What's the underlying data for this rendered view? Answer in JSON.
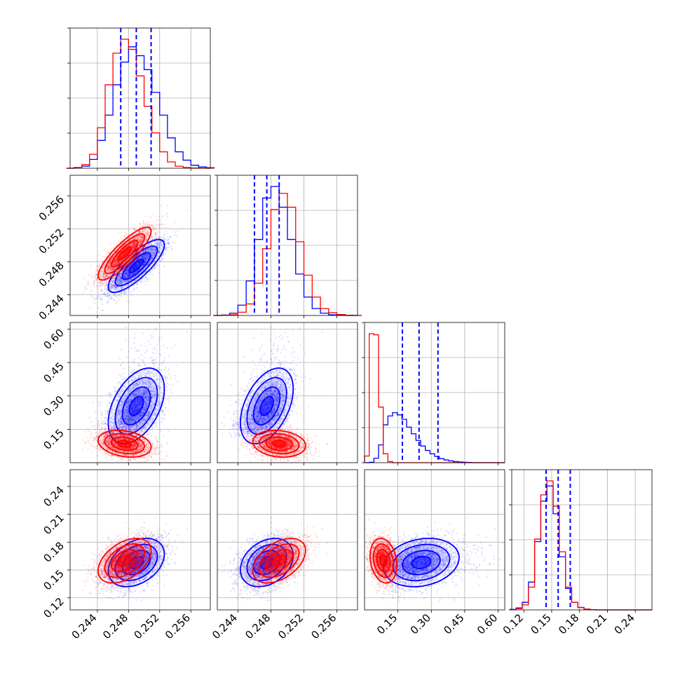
{
  "chart_data": {
    "type": "corner",
    "colors": {
      "blue": "#0000ff",
      "red": "#ff0000",
      "grid": "#b0b0b0"
    },
    "parameters": [
      {
        "range": [
          0.2405,
          0.2585
        ],
        "ticks": [
          0.244,
          0.248,
          0.252,
          0.256
        ],
        "tick_labels": [
          "0.244",
          "0.248",
          "0.252",
          "0.256"
        ]
      },
      {
        "range": [
          0.2415,
          0.2585
        ],
        "ticks": [
          0.244,
          0.248,
          0.252,
          0.256
        ],
        "tick_labels": [
          "0.244",
          "0.248",
          "0.252",
          "0.256"
        ]
      },
      {
        "range": [
          0.0,
          0.63
        ],
        "ticks": [
          0.15,
          0.3,
          0.45,
          0.6
        ],
        "tick_labels": [
          "0.15",
          "0.30",
          "0.45",
          "0.60"
        ]
      },
      {
        "range": [
          0.107,
          0.258
        ],
        "ticks": [
          0.12,
          0.15,
          0.18,
          0.21,
          0.24
        ],
        "tick_labels": [
          "0.12",
          "0.15",
          "0.18",
          "0.21",
          "0.24"
        ]
      }
    ],
    "series": [
      {
        "color": "blue",
        "means": [
          0.249,
          0.2475,
          0.255,
          0.158
        ],
        "sds": [
          0.0018,
          0.0016,
          0.085,
          0.013
        ],
        "corr": [
          [
            1,
            0.8,
            0.45,
            0.35
          ],
          [
            0.8,
            1,
            0.45,
            0.3
          ],
          [
            0.45,
            0.45,
            1,
            0.2
          ],
          [
            0.35,
            0.3,
            0.2,
            1
          ]
        ],
        "skew_param": 2
      },
      {
        "color": "red",
        "means": [
          0.2475,
          0.249,
          0.085,
          0.16
        ],
        "sds": [
          0.0017,
          0.0016,
          0.03,
          0.012
        ],
        "corr": [
          [
            1,
            0.85,
            -0.25,
            0.45
          ],
          [
            0.85,
            1,
            -0.15,
            0.45
          ],
          [
            -0.25,
            -0.15,
            1,
            -0.2
          ],
          [
            0.45,
            0.45,
            -0.2,
            1
          ]
        ],
        "skew_param": null
      }
    ],
    "histograms": [
      {
        "bins": [
          0.24,
          0.259
        ],
        "blue": [
          0,
          2,
          8,
          35,
          110,
          210,
          330,
          420,
          480,
          445,
          390,
          300,
          210,
          120,
          65,
          32,
          12,
          5,
          2
        ],
        "red": [
          0,
          3,
          14,
          55,
          160,
          330,
          455,
          510,
          470,
          365,
          245,
          140,
          65,
          25,
          8,
          3,
          1,
          0,
          0
        ]
      },
      {
        "bins": [
          0.241,
          0.259
        ],
        "blue": [
          0,
          2,
          10,
          45,
          150,
          330,
          510,
          560,
          470,
          330,
          180,
          80,
          30,
          10,
          3,
          1,
          0,
          0
        ],
        "red": [
          0,
          1,
          3,
          14,
          50,
          140,
          290,
          460,
          530,
          470,
          320,
          175,
          80,
          30,
          12,
          4,
          1,
          0
        ]
      },
      {
        "bins": [
          0.0,
          0.63
        ],
        "blue": [
          0,
          2,
          20,
          80,
          170,
          210,
          225,
          215,
          195,
          160,
          130,
          100,
          75,
          55,
          40,
          28,
          18,
          12,
          8,
          5,
          3,
          2,
          1,
          0,
          0,
          0,
          0,
          0,
          0,
          0
        ],
        "red": [
          30,
          580,
          575,
          250,
          40,
          5,
          0,
          0,
          0,
          0,
          0,
          0,
          0,
          0,
          0,
          0,
          0,
          0,
          0,
          0,
          0,
          0,
          0,
          0,
          0,
          0,
          0,
          0,
          0,
          0
        ]
      },
      {
        "bins": [
          0.105,
          0.258
        ],
        "blue": [
          2,
          8,
          30,
          110,
          270,
          430,
          490,
          380,
          210,
          85,
          30,
          10,
          3,
          1,
          0,
          0,
          0,
          0,
          0,
          0,
          0,
          0,
          0
        ],
        "red": [
          1,
          5,
          20,
          90,
          280,
          455,
          510,
          410,
          230,
          90,
          30,
          9,
          3,
          1,
          0,
          0,
          0,
          0,
          0,
          0,
          0,
          0,
          0
        ]
      }
    ],
    "quantile_lines": [
      [
        0.247,
        0.249,
        0.2509
      ],
      [
        0.246,
        0.2475,
        0.249
      ],
      [
        0.17,
        0.245,
        0.33
      ],
      [
        0.144,
        0.157,
        0.17
      ]
    ]
  }
}
